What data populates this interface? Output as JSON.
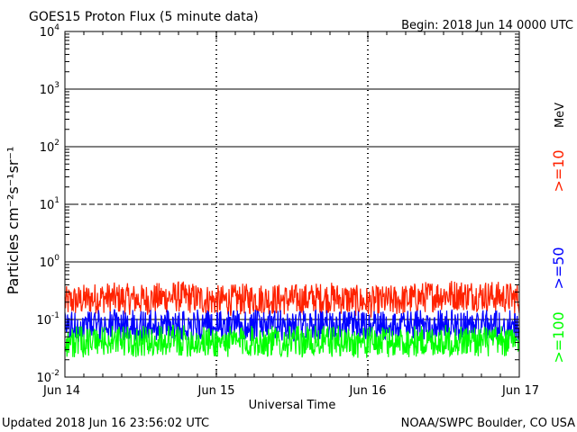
{
  "header": {
    "title": "GOES15 Proton Flux (5 minute data)",
    "begin": "Begin: 2018 Jun 14 0000 UTC"
  },
  "footer": {
    "updated": "Updated 2018 Jun 16 23:56:02 UTC",
    "credit": "NOAA/SWPC Boulder, CO USA"
  },
  "chart_data": {
    "type": "line",
    "title": "GOES15 Proton Flux (5 minute data)",
    "xlabel": "Universal Time",
    "ylabel": "Particles cm⁻²s⁻¹sr⁻¹",
    "yscale": "log",
    "ylim": [
      0.01,
      10000
    ],
    "xlim": [
      "2018-06-14 00:00",
      "2018-06-17 00:00"
    ],
    "x_ticks": [
      "Jun 14",
      "Jun 15",
      "Jun 16",
      "Jun 17"
    ],
    "y_ticks": [
      {
        "value": 0.01,
        "base": "10",
        "exp": "-2"
      },
      {
        "value": 0.1,
        "base": "10",
        "exp": "-1"
      },
      {
        "value": 1,
        "base": "10",
        "exp": "0"
      },
      {
        "value": 10,
        "base": "10",
        "exp": "1"
      },
      {
        "value": 100,
        "base": "10",
        "exp": "2"
      },
      {
        "value": 1000,
        "base": "10",
        "exp": "3"
      },
      {
        "value": 10000,
        "base": "10",
        "exp": "4"
      }
    ],
    "thresholds": [
      {
        "value": 10,
        "style": "dashed"
      },
      {
        "value": 1,
        "style": "solid"
      }
    ],
    "units_label": "MeV",
    "series": [
      {
        "name": ">=10",
        "color": "#ff2200",
        "x": [
          "2018-06-14 00:00",
          "2018-06-14 06:00",
          "2018-06-14 12:00",
          "2018-06-14 18:00",
          "2018-06-15 00:00",
          "2018-06-15 06:00",
          "2018-06-15 12:00",
          "2018-06-15 18:00",
          "2018-06-16 00:00",
          "2018-06-16 06:00",
          "2018-06-16 12:00",
          "2018-06-16 18:00",
          "2018-06-17 00:00"
        ],
        "values": [
          0.2,
          0.24,
          0.22,
          0.25,
          0.21,
          0.23,
          0.22,
          0.24,
          0.2,
          0.22,
          0.27,
          0.26,
          0.23
        ]
      },
      {
        "name": ">=50",
        "color": "#0000ff",
        "x": [
          "2018-06-14 00:00",
          "2018-06-14 06:00",
          "2018-06-14 12:00",
          "2018-06-14 18:00",
          "2018-06-15 00:00",
          "2018-06-15 06:00",
          "2018-06-15 12:00",
          "2018-06-15 18:00",
          "2018-06-16 00:00",
          "2018-06-16 06:00",
          "2018-06-16 12:00",
          "2018-06-16 18:00",
          "2018-06-17 00:00"
        ],
        "values": [
          0.075,
          0.08,
          0.078,
          0.082,
          0.076,
          0.079,
          0.077,
          0.08,
          0.075,
          0.078,
          0.081,
          0.079,
          0.076
        ]
      },
      {
        "name": ">=100",
        "color": "#00ff00",
        "x": [
          "2018-06-14 00:00",
          "2018-06-14 06:00",
          "2018-06-14 12:00",
          "2018-06-14 18:00",
          "2018-06-15 00:00",
          "2018-06-15 06:00",
          "2018-06-15 12:00",
          "2018-06-15 18:00",
          "2018-06-16 00:00",
          "2018-06-16 06:00",
          "2018-06-16 12:00",
          "2018-06-16 18:00",
          "2018-06-17 00:00"
        ],
        "values": [
          0.04,
          0.042,
          0.041,
          0.043,
          0.04,
          0.042,
          0.041,
          0.042,
          0.04,
          0.041,
          0.043,
          0.042,
          0.04
        ]
      }
    ]
  }
}
